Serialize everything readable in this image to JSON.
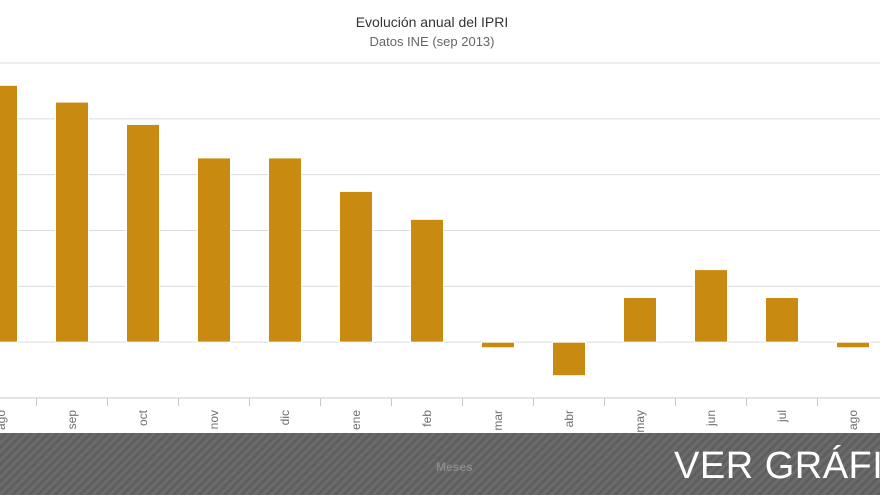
{
  "chart_data": {
    "type": "bar",
    "title": "Evolución anual del IPRI",
    "subtitle": "Datos INE (sep 2013)",
    "xlabel": "Meses",
    "ylabel": "",
    "categories": [
      "ago",
      "sep",
      "oct",
      "nov",
      "dic",
      "ene",
      "feb",
      "mar",
      "abr",
      "may",
      "jun",
      "jul",
      "ago"
    ],
    "values": [
      4.6,
      4.3,
      3.9,
      3.3,
      3.3,
      2.7,
      2.2,
      -0.1,
      -0.6,
      0.8,
      1.3,
      0.8,
      -0.1
    ],
    "ylim": [
      -1,
      5
    ],
    "grid": true,
    "bar_color": "#c98a12"
  },
  "banner": {
    "cta_label": "VER GRÁFICO"
  }
}
